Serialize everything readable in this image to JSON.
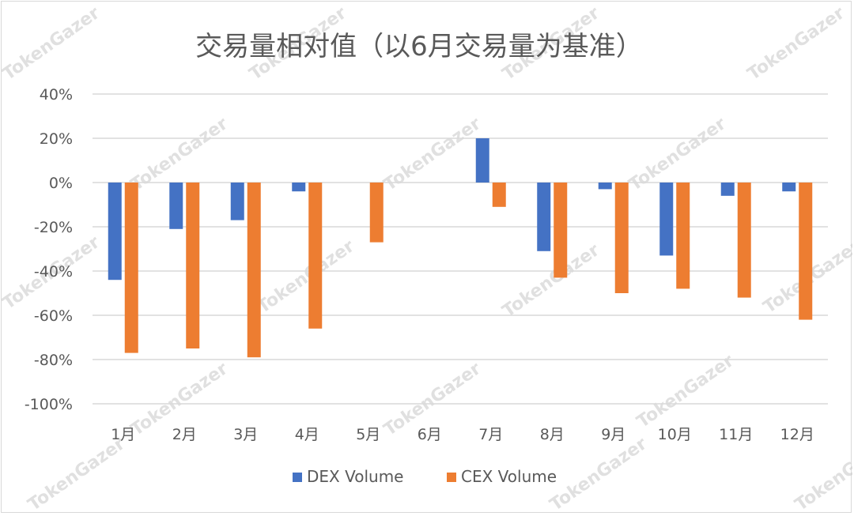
{
  "watermark_text": "TokenGazer",
  "chart_data": {
    "type": "bar",
    "title": "交易量相对值（以6月交易量为基准）",
    "categories": [
      "1月",
      "2月",
      "3月",
      "4月",
      "5月",
      "6月",
      "7月",
      "8月",
      "9月",
      "10月",
      "11月",
      "12月"
    ],
    "series": [
      {
        "name": "DEX Volume",
        "color": "#4472c4",
        "values": [
          -44,
          -21,
          -17,
          -4,
          0,
          0,
          20,
          -31,
          -3,
          -33,
          -6,
          -4
        ]
      },
      {
        "name": "CEX Volume",
        "color": "#ed7d31",
        "values": [
          -77,
          -75,
          -79,
          -66,
          -27,
          0,
          -11,
          -43,
          -50,
          -48,
          -52,
          -62
        ]
      }
    ],
    "yticks": [
      "40%",
      "20%",
      "0%",
      "-20%",
      "-40%",
      "-60%",
      "-80%",
      "-100%"
    ],
    "ylim": [
      -100,
      40
    ],
    "grid": true,
    "legend": "bottom"
  }
}
